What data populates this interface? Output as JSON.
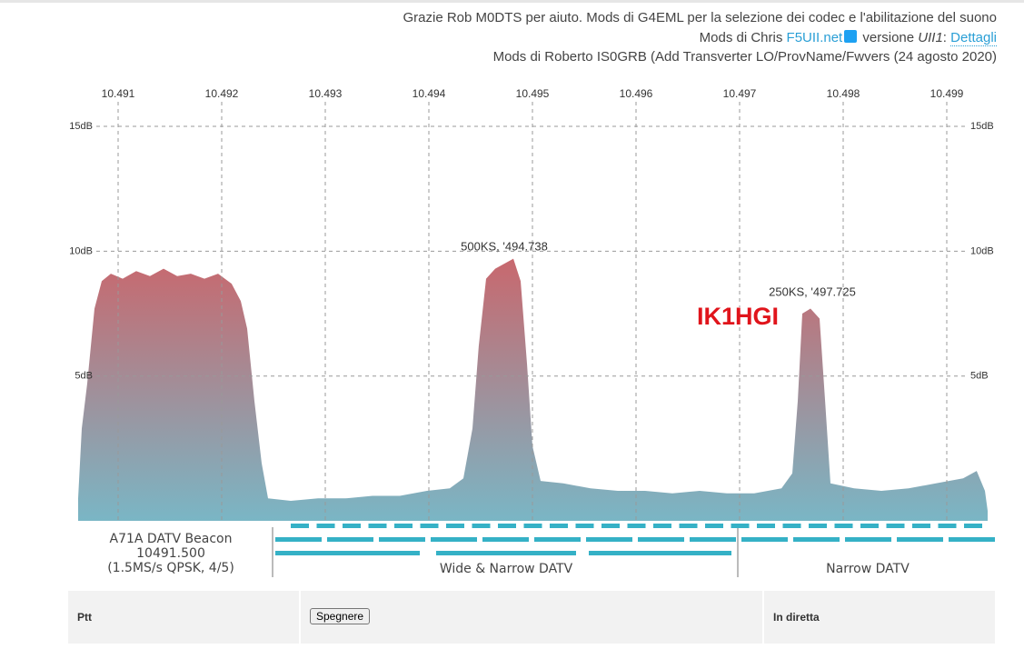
{
  "header": {
    "line1": "Grazie Rob M0DTS per aiuto. Mods di G4EML per la selezione dei codec e l'abilitazione del suono",
    "line2": {
      "prefix": "Mods di Chris",
      "link": "F5UII.net",
      "version_label": "versione",
      "version": "UII1",
      "version_suffix": ":",
      "details": "Dettagli"
    },
    "line3": "Mods di Roberto IS0GRB (Add Transverter LO/ProvName/Fwvers (24 agosto 2020)"
  },
  "chart_data": {
    "type": "area",
    "x": [
      10.490614,
      10.490649,
      10.490702,
      10.490772,
      10.490842,
      10.49093,
      10.491044,
      10.491175,
      10.491307,
      10.491439,
      10.49157,
      10.491702,
      10.491833,
      10.491965,
      10.492096,
      10.492184,
      10.492246,
      10.492316,
      10.492386,
      10.492447,
      10.492667,
      10.49293,
      10.493193,
      10.493456,
      10.493719,
      10.493982,
      10.494202,
      10.494333,
      10.494421,
      10.494482,
      10.494553,
      10.49464,
      10.494728,
      10.494816,
      10.494886,
      10.494947,
      10.495,
      10.495079,
      10.495298,
      10.495561,
      10.495825,
      10.496088,
      10.496351,
      10.496614,
      10.496877,
      10.49714,
      10.497404,
      10.497509,
      10.497561,
      10.497605,
      10.497684,
      10.497772,
      10.497825,
      10.497877,
      10.498105,
      10.498368,
      10.498632,
      10.498895,
      10.499158,
      10.499289,
      10.499368,
      10.499395
    ],
    "values": [
      0.1,
      2.9,
      4.7,
      7.7,
      8.8,
      9.1,
      8.9,
      9.2,
      9.0,
      9.3,
      9.0,
      9.1,
      8.9,
      9.1,
      8.7,
      8.0,
      6.9,
      4.0,
      1.5,
      0.1,
      0.0,
      0.1,
      0.1,
      0.2,
      0.2,
      0.4,
      0.5,
      0.9,
      2.9,
      6.2,
      8.9,
      9.3,
      9.5,
      9.7,
      8.8,
      5.5,
      2.2,
      0.8,
      0.7,
      0.5,
      0.4,
      0.4,
      0.3,
      0.4,
      0.3,
      0.3,
      0.5,
      1.1,
      4.0,
      7.5,
      7.7,
      7.3,
      4.0,
      0.7,
      0.5,
      0.4,
      0.5,
      0.7,
      0.9,
      1.2,
      0.4,
      -0.4
    ],
    "xlim": [
      10.4906,
      10.4994
    ],
    "ylim": [
      -0.8,
      16.4
    ],
    "xticks": [
      10.491,
      10.492,
      10.493,
      10.494,
      10.495,
      10.496,
      10.497,
      10.498,
      10.499
    ],
    "yticks": [
      {
        "value": 5,
        "label": "5dB"
      },
      {
        "value": 10,
        "label": "10dB"
      },
      {
        "value": 15,
        "label": "15dB"
      }
    ],
    "grid": true,
    "color_top": "#c8686e",
    "color_bottom": "#7ab6c5",
    "annotations": [
      "500KS, '494.738",
      "250KS, '497.725"
    ],
    "callsign": "IK1HGI"
  },
  "band_plan": {
    "beacon": [
      "A71A DATV Beacon",
      "10491.500",
      "(1.5MS/s QPSK, 4/5)"
    ],
    "wide": "Wide & Narrow DATV",
    "narrow": "Narrow DATV"
  },
  "controls": {
    "ptt": "Ptt",
    "button": "Spegnere",
    "live": "In diretta"
  }
}
